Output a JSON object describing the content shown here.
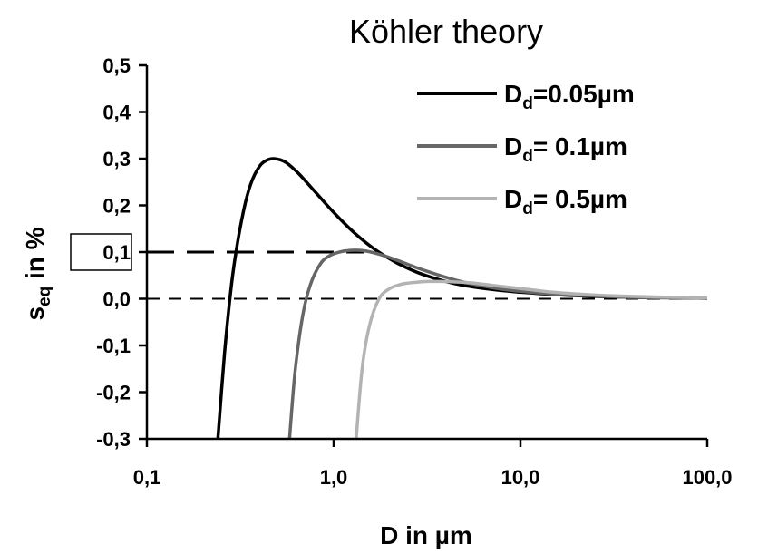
{
  "chart_data": {
    "type": "line",
    "title": "Köhler theory",
    "xlabel": "D in µm",
    "ylabel_main": "s",
    "ylabel_sub": "eq",
    "ylabel_rest": " in %",
    "x_scale": "log",
    "xlim": [
      0.1,
      100
    ],
    "ylim": [
      -0.3,
      0.5
    ],
    "x_ticks": [
      0.1,
      1,
      10,
      100
    ],
    "x_tick_labels": [
      "0,1",
      "1,0",
      "10,0",
      "100,0"
    ],
    "y_ticks": [
      -0.3,
      -0.2,
      -0.1,
      0.0,
      0.1,
      0.2,
      0.3,
      0.4,
      0.5
    ],
    "y_tick_labels": [
      "-0,3",
      "-0,2",
      "-0,1",
      "0,0",
      "0,1",
      "0,2",
      "0,3",
      "0,4",
      "0,5"
    ],
    "boxed_tick": "0,1",
    "legend_position": "top-right",
    "grid": false,
    "series": [
      {
        "legend_main": "D",
        "legend_sub": "d",
        "legend_rest": "=0.05µm",
        "color": "#000000",
        "x": [
          0.24,
          0.26,
          0.28,
          0.3,
          0.33,
          0.36,
          0.4,
          0.44,
          0.48,
          0.55,
          0.65,
          0.8,
          1.0,
          1.3,
          1.7,
          2.2,
          3.0,
          4.5,
          7.0,
          10,
          15,
          25,
          40,
          70,
          100
        ],
        "y": [
          -0.3,
          -0.12,
          0.01,
          0.1,
          0.19,
          0.246,
          0.283,
          0.297,
          0.3,
          0.293,
          0.268,
          0.228,
          0.185,
          0.14,
          0.103,
          0.076,
          0.052,
          0.032,
          0.02,
          0.014,
          0.009,
          0.005,
          0.003,
          0.002,
          0.001
        ]
      },
      {
        "legend_main": "D",
        "legend_sub": "d",
        "legend_rest": "=  0.1µm",
        "color": "#666666",
        "x": [
          0.58,
          0.62,
          0.68,
          0.75,
          0.85,
          0.95,
          1.1,
          1.3,
          1.5,
          1.8,
          2.2,
          3.0,
          4.5,
          7.0,
          10,
          15,
          25,
          40,
          70,
          100
        ],
        "y": [
          -0.3,
          -0.16,
          -0.04,
          0.03,
          0.075,
          0.092,
          0.101,
          0.104,
          0.102,
          0.094,
          0.082,
          0.062,
          0.04,
          0.024,
          0.016,
          0.01,
          0.006,
          0.003,
          0.002,
          0.001
        ]
      },
      {
        "legend_main": "D",
        "legend_sub": "d",
        "legend_rest": "=  0.5µm",
        "color": "#b3b3b3",
        "x": [
          1.32,
          1.42,
          1.55,
          1.75,
          2.0,
          2.3,
          2.7,
          3.2,
          3.8,
          4.5,
          5.5,
          7.0,
          10,
          15,
          25,
          40,
          70,
          100
        ],
        "y": [
          -0.3,
          -0.15,
          -0.06,
          0.0,
          0.022,
          0.031,
          0.035,
          0.037,
          0.037,
          0.036,
          0.034,
          0.029,
          0.022,
          0.014,
          0.008,
          0.005,
          0.003,
          0.002
        ]
      }
    ],
    "reference_lines": [
      {
        "y": 0.1,
        "x_from": 0.1,
        "x_to": 1.45,
        "style": "long-dash"
      },
      {
        "y": 0.0,
        "x_from": 0.1,
        "x_to": 100,
        "style": "dash"
      }
    ]
  }
}
